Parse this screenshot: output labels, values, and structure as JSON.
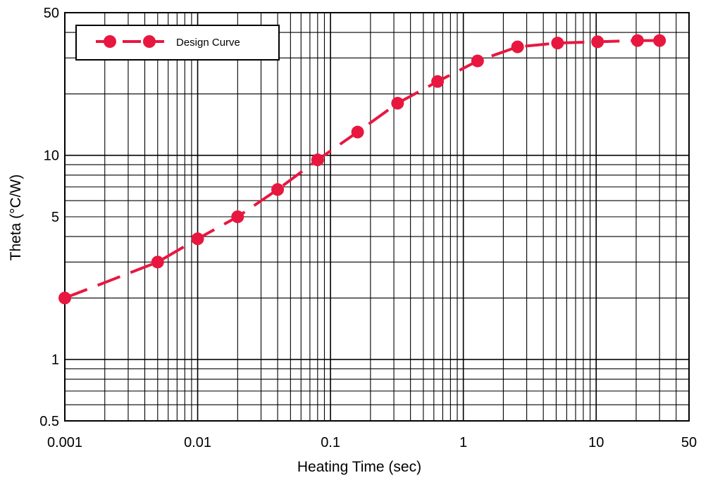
{
  "chart_data": {
    "type": "line",
    "title": "",
    "xlabel": "Heating Time (sec)",
    "ylabel": "Theta (°C/W)",
    "x_scale": "log",
    "y_scale": "log",
    "xlim": [
      0.001,
      50
    ],
    "ylim": [
      0.5,
      50
    ],
    "x_ticks": [
      {
        "value": 0.001,
        "label": "0.001"
      },
      {
        "value": 0.01,
        "label": "0.01"
      },
      {
        "value": 0.1,
        "label": "0.1"
      },
      {
        "value": 1,
        "label": "1"
      },
      {
        "value": 10,
        "label": "10"
      },
      {
        "value": 50,
        "label": "50"
      }
    ],
    "y_ticks": [
      {
        "value": 0.5,
        "label": "0.5"
      },
      {
        "value": 1,
        "label": "1"
      },
      {
        "value": 5,
        "label": "5"
      },
      {
        "value": 10,
        "label": "10"
      },
      {
        "value": 50,
        "label": "50"
      }
    ],
    "grid": true,
    "legend_position": "top-left",
    "series": [
      {
        "name": "Design Curve",
        "color": "#e8173f",
        "line_style": "dashed",
        "marker": "circle",
        "x": [
          0.001,
          0.005,
          0.01,
          0.02,
          0.04,
          0.08,
          0.16,
          0.32,
          0.64,
          1.28,
          2.56,
          5.12,
          10.24,
          20.48,
          30
        ],
        "y": [
          2.0,
          3.0,
          3.9,
          5.0,
          6.8,
          9.5,
          13.0,
          18.0,
          23.0,
          29.0,
          34.0,
          35.5,
          36.0,
          36.5,
          36.5
        ]
      }
    ]
  }
}
